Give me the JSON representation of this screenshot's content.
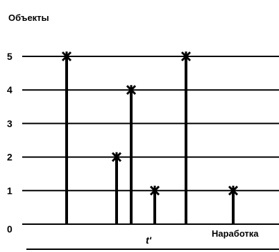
{
  "chart_data": {
    "type": "bar",
    "title": "",
    "ylabel": "Объекты",
    "xlabel": "Наработка",
    "y_ticks": [
      "0",
      "1",
      "2",
      "3",
      "4",
      "5"
    ],
    "ylim": [
      0,
      5
    ],
    "grid": true,
    "annotation": "t'",
    "series": [
      {
        "values": [
          5,
          2,
          4,
          1,
          5,
          1
        ]
      }
    ],
    "bar_colors": [
      "#000000",
      "#000000",
      "#000000",
      "#000000",
      "#000000",
      "#000000"
    ]
  }
}
